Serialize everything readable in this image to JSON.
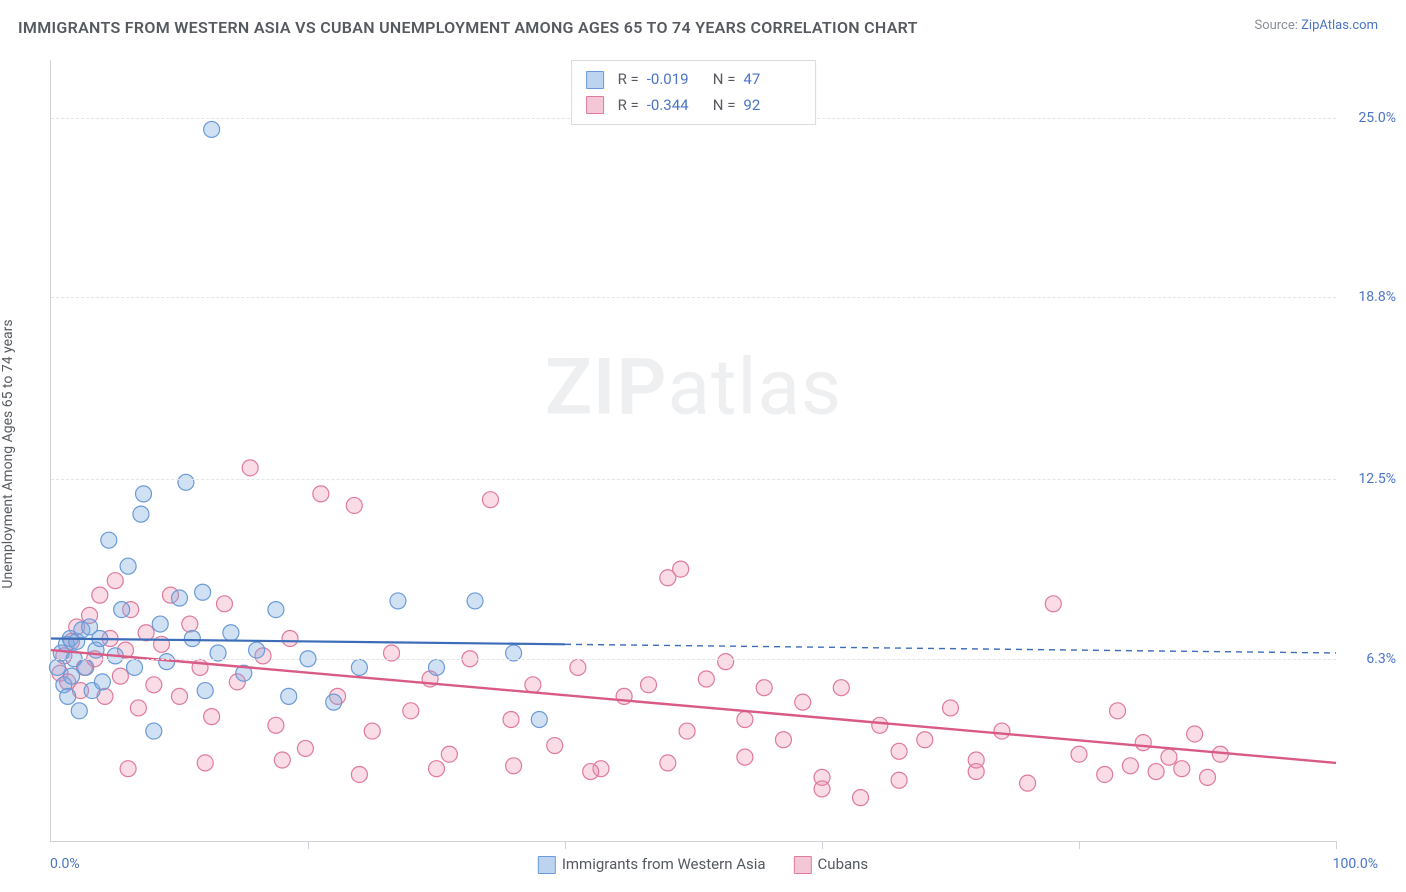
{
  "title": "IMMIGRANTS FROM WESTERN ASIA VS CUBAN UNEMPLOYMENT AMONG AGES 65 TO 74 YEARS CORRELATION CHART",
  "source_prefix": "Source: ",
  "source_link": "ZipAtlas.com",
  "y_axis_label": "Unemployment Among Ages 65 to 74 years",
  "watermark_zip": "ZIP",
  "watermark_atlas": "atlas",
  "chart": {
    "type": "scatter-with-regression",
    "xlim": [
      0,
      100
    ],
    "ylim": [
      0,
      27
    ],
    "x_tick_positions": [
      0,
      20,
      40,
      60,
      80,
      100
    ],
    "y_ticks": [
      {
        "value": 6.3,
        "label": "6.3%"
      },
      {
        "value": 12.5,
        "label": "12.5%"
      },
      {
        "value": 18.8,
        "label": "18.8%"
      },
      {
        "value": 25.0,
        "label": "25.0%"
      }
    ],
    "x_0_label": "0.0%",
    "x_100_label": "100.0%",
    "background_color": "#ffffff",
    "grid_color": "#e2e4e8",
    "axis_color": "#cfd3d8",
    "marker_radius": 8,
    "marker_opacity": 0.55,
    "marker_stroke_width": 1.2,
    "series": [
      {
        "key": "western_asia",
        "label": "Immigrants from Western Asia",
        "color_fill": "rgba(122,168,224,0.35)",
        "color_stroke": "#6a9bd8",
        "swatch_fill": "#bcd4ef",
        "swatch_border": "#6a9bd8",
        "R": "-0.019",
        "N": "47",
        "regression": {
          "x1": 0,
          "y1": 7.0,
          "x2": 40,
          "y2": 6.8,
          "x2_dash": 100,
          "y2_dash": 6.5,
          "color": "#3d6db8",
          "width": 2.2
        },
        "points": [
          [
            0.5,
            6.0
          ],
          [
            0.8,
            6.5
          ],
          [
            1.0,
            5.4
          ],
          [
            1.2,
            6.8
          ],
          [
            1.3,
            5.0
          ],
          [
            1.5,
            7.0
          ],
          [
            1.6,
            5.7
          ],
          [
            1.8,
            6.3
          ],
          [
            2.0,
            6.9
          ],
          [
            2.2,
            4.5
          ],
          [
            2.4,
            7.3
          ],
          [
            2.7,
            6.0
          ],
          [
            3.0,
            7.4
          ],
          [
            3.2,
            5.2
          ],
          [
            3.5,
            6.6
          ],
          [
            3.8,
            7.0
          ],
          [
            4.0,
            5.5
          ],
          [
            4.5,
            10.4
          ],
          [
            5.0,
            6.4
          ],
          [
            5.5,
            8.0
          ],
          [
            6.0,
            9.5
          ],
          [
            6.5,
            6.0
          ],
          [
            7.0,
            11.3
          ],
          [
            7.2,
            12.0
          ],
          [
            8.0,
            3.8
          ],
          [
            8.5,
            7.5
          ],
          [
            9.0,
            6.2
          ],
          [
            10.0,
            8.4
          ],
          [
            10.5,
            12.4
          ],
          [
            11.0,
            7.0
          ],
          [
            11.8,
            8.6
          ],
          [
            12.0,
            5.2
          ],
          [
            12.5,
            24.6
          ],
          [
            13.0,
            6.5
          ],
          [
            14.0,
            7.2
          ],
          [
            15.0,
            5.8
          ],
          [
            16.0,
            6.6
          ],
          [
            17.5,
            8.0
          ],
          [
            18.5,
            5.0
          ],
          [
            20.0,
            6.3
          ],
          [
            22.0,
            4.8
          ],
          [
            24.0,
            6.0
          ],
          [
            27.0,
            8.3
          ],
          [
            30.0,
            6.0
          ],
          [
            33.0,
            8.3
          ],
          [
            36.0,
            6.5
          ],
          [
            38.0,
            4.2
          ]
        ]
      },
      {
        "key": "cubans",
        "label": "Cubans",
        "color_fill": "rgba(235,140,170,0.30)",
        "color_stroke": "#e07a9c",
        "swatch_fill": "#f3c7d6",
        "swatch_border": "#e07a9c",
        "R": "-0.344",
        "N": "92",
        "regression": {
          "x1": 0,
          "y1": 6.6,
          "x2": 100,
          "y2": 2.7,
          "color": "#d85a85",
          "width": 2.4
        },
        "points": [
          [
            0.7,
            5.8
          ],
          [
            1.0,
            6.4
          ],
          [
            1.3,
            5.5
          ],
          [
            1.6,
            6.9
          ],
          [
            2.0,
            7.4
          ],
          [
            2.3,
            5.2
          ],
          [
            2.6,
            6.0
          ],
          [
            3.0,
            7.8
          ],
          [
            3.4,
            6.3
          ],
          [
            3.8,
            8.5
          ],
          [
            4.2,
            5.0
          ],
          [
            4.6,
            7.0
          ],
          [
            5.0,
            9.0
          ],
          [
            5.4,
            5.7
          ],
          [
            5.8,
            6.6
          ],
          [
            6.2,
            8.0
          ],
          [
            6.8,
            4.6
          ],
          [
            7.4,
            7.2
          ],
          [
            8.0,
            5.4
          ],
          [
            8.6,
            6.8
          ],
          [
            9.3,
            8.5
          ],
          [
            10.0,
            5.0
          ],
          [
            10.8,
            7.5
          ],
          [
            11.6,
            6.0
          ],
          [
            12.5,
            4.3
          ],
          [
            13.5,
            8.2
          ],
          [
            14.5,
            5.5
          ],
          [
            15.5,
            12.9
          ],
          [
            16.5,
            6.4
          ],
          [
            17.5,
            4.0
          ],
          [
            18.6,
            7.0
          ],
          [
            19.8,
            3.2
          ],
          [
            21.0,
            12.0
          ],
          [
            22.3,
            5.0
          ],
          [
            23.6,
            11.6
          ],
          [
            25.0,
            3.8
          ],
          [
            26.5,
            6.5
          ],
          [
            28.0,
            4.5
          ],
          [
            29.5,
            5.6
          ],
          [
            31.0,
            3.0
          ],
          [
            32.6,
            6.3
          ],
          [
            34.2,
            11.8
          ],
          [
            35.8,
            4.2
          ],
          [
            37.5,
            5.4
          ],
          [
            39.2,
            3.3
          ],
          [
            41.0,
            6.0
          ],
          [
            42.8,
            2.5
          ],
          [
            44.6,
            5.0
          ],
          [
            46.5,
            5.4
          ],
          [
            48.0,
            9.1
          ],
          [
            49.0,
            9.4
          ],
          [
            49.5,
            3.8
          ],
          [
            51.0,
            5.6
          ],
          [
            52.5,
            6.2
          ],
          [
            54.0,
            4.2
          ],
          [
            55.5,
            5.3
          ],
          [
            57.0,
            3.5
          ],
          [
            58.5,
            4.8
          ],
          [
            60.0,
            2.2
          ],
          [
            61.5,
            5.3
          ],
          [
            63.0,
            1.5
          ],
          [
            64.5,
            4.0
          ],
          [
            66.0,
            3.1
          ],
          [
            68.0,
            3.5
          ],
          [
            70.0,
            4.6
          ],
          [
            72.0,
            2.8
          ],
          [
            74.0,
            3.8
          ],
          [
            76.0,
            2.0
          ],
          [
            78.0,
            8.2
          ],
          [
            80.0,
            3.0
          ],
          [
            82.0,
            2.3
          ],
          [
            83.0,
            4.5
          ],
          [
            84.0,
            2.6
          ],
          [
            85.0,
            3.4
          ],
          [
            86.0,
            2.4
          ],
          [
            87.0,
            2.9
          ],
          [
            88.0,
            2.5
          ],
          [
            89.0,
            3.7
          ],
          [
            90.0,
            2.2
          ],
          [
            91.0,
            3.0
          ],
          [
            6.0,
            2.5
          ],
          [
            12.0,
            2.7
          ],
          [
            18.0,
            2.8
          ],
          [
            24.0,
            2.3
          ],
          [
            30.0,
            2.5
          ],
          [
            36.0,
            2.6
          ],
          [
            42.0,
            2.4
          ],
          [
            48.0,
            2.7
          ],
          [
            54.0,
            2.9
          ],
          [
            60.0,
            1.8
          ],
          [
            66.0,
            2.1
          ],
          [
            72.0,
            2.4
          ]
        ]
      }
    ]
  },
  "legend_top": {
    "R_label": "R =",
    "N_label": "N ="
  }
}
